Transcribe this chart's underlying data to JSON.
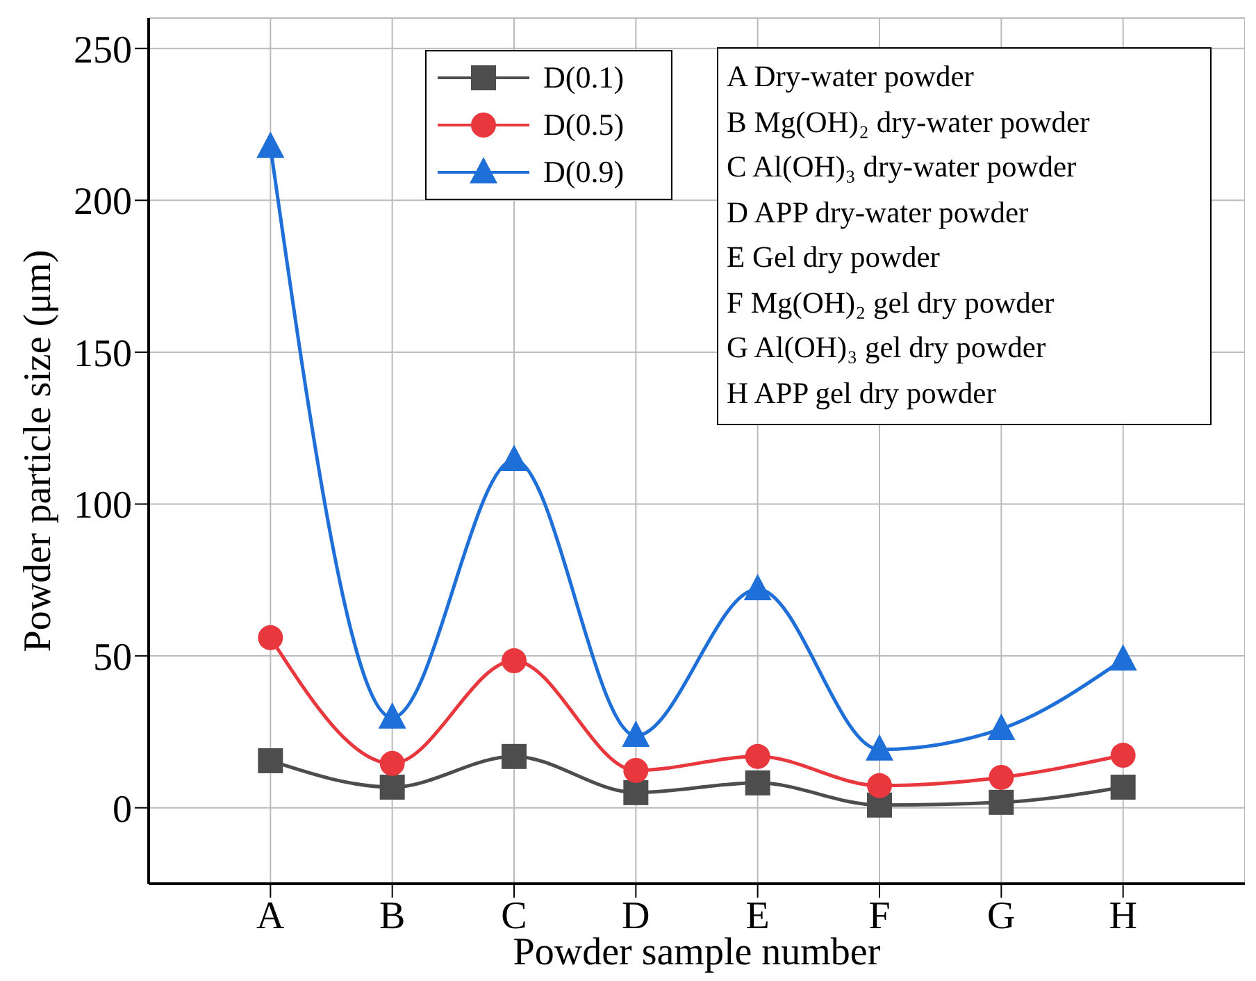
{
  "chart_data": {
    "type": "line",
    "xlabel": "Powder sample number",
    "ylabel": "Powder particle size (μm)",
    "categories": [
      "A",
      "B",
      "C",
      "D",
      "E",
      "F",
      "G",
      "H"
    ],
    "series": [
      {
        "name": "D(0.1)",
        "color": "#4d4d4d",
        "marker": "square",
        "values": [
          15.5,
          6.8,
          16.9,
          5,
          8.2,
          0.9,
          1.8,
          6.8
        ]
      },
      {
        "name": "D(0.5)",
        "color": "#e8383d",
        "marker": "circle",
        "values": [
          56,
          14.6,
          48.4,
          12.3,
          16.9,
          7.3,
          10,
          17.3
        ]
      },
      {
        "name": "D(0.9)",
        "color": "#1f6fd8",
        "marker": "triangle",
        "values": [
          217.6,
          29.7,
          114.5,
          23.7,
          72,
          19.2,
          26,
          48.8
        ]
      }
    ],
    "ylim": [
      -25,
      260
    ],
    "yticks": [
      0,
      50,
      100,
      150,
      200,
      250
    ],
    "grid": true,
    "legend": "top",
    "annotations": [
      "A Dry-water powder",
      "B Mg(OH)₂ dry-water powder",
      "C Al(OH)₃ dry-water powder",
      "D APP dry-water powder",
      "E Gel dry powder",
      "F Mg(OH)₂ gel dry powder",
      "G Al(OH)₃ gel dry powder",
      "H APP gel dry powder"
    ]
  }
}
